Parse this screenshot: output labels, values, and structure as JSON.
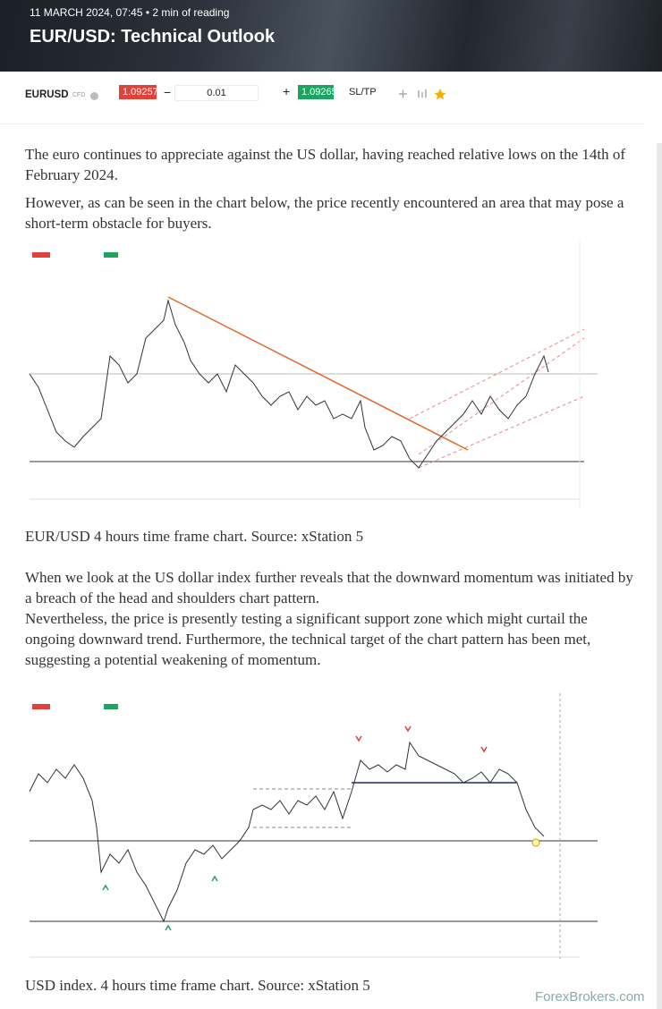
{
  "header": {
    "meta": "11 MARCH 2024, 07:45 • 2 min of reading",
    "title": "EUR/USD: Technical Outlook"
  },
  "trade_bar": {
    "symbol": "EURUSD",
    "type": "CFD",
    "sell": "1.09257",
    "volume": "0.01",
    "buy": "1.09265",
    "sltp": "SL/TP"
  },
  "paragraphs": [
    "The euro continues to appreciate against the US dollar, having reached relative lows on the 14th of February 2024.",
    "However, as can be seen in the chart below, the price recently encountered an area that may pose a short-term obstacle for buyers.",
    "When we look at the US dollar index further reveals that the downward momentum was initiated by a breach of the head and shoulders chart pattern.",
    "Nevertheless, the price is presently testing a significant support zone which might curtail the ongoing downward trend. Furthermore, the technical target of the chart pattern has been met, suggesting a potential weakening of momentum."
  ],
  "figures": [
    {
      "caption": "EUR/USD 4  hours time frame chart. Source: xStation 5"
    },
    {
      "caption": "USD index. 4 hours time frame chart. Source: xStation 5"
    }
  ],
  "footer": {
    "logo": "ForexBrokers.com"
  }
}
